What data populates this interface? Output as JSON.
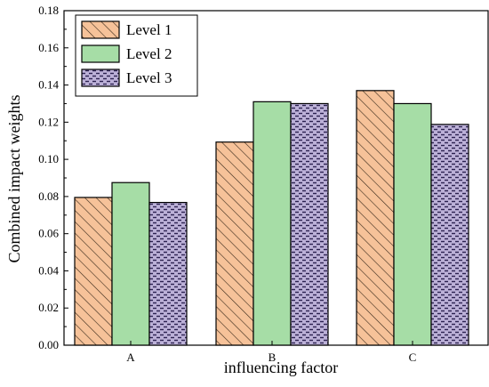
{
  "chart_data": {
    "type": "bar",
    "categories": [
      "A",
      "B",
      "C"
    ],
    "series": [
      {
        "name": "Level 1",
        "values": [
          0.0795,
          0.1093,
          0.137
        ],
        "color": "#f6c299",
        "pattern": "diagonal-hatch"
      },
      {
        "name": "Level 2",
        "values": [
          0.0875,
          0.131,
          0.13
        ],
        "color": "#a6dda6",
        "pattern": "solid"
      },
      {
        "name": "Level 3",
        "values": [
          0.0768,
          0.13,
          0.1188
        ],
        "color": "#bcb1d8",
        "pattern": "dash-weave"
      }
    ],
    "title": "",
    "xlabel": "influencing factor",
    "ylabel": "Combined impact weights",
    "ylim": [
      0,
      0.18
    ],
    "yticks": [
      "0.00",
      "0.02",
      "0.04",
      "0.06",
      "0.08",
      "0.10",
      "0.12",
      "0.14",
      "0.16",
      "0.18"
    ],
    "grid": false,
    "legend_position": "top-left"
  }
}
